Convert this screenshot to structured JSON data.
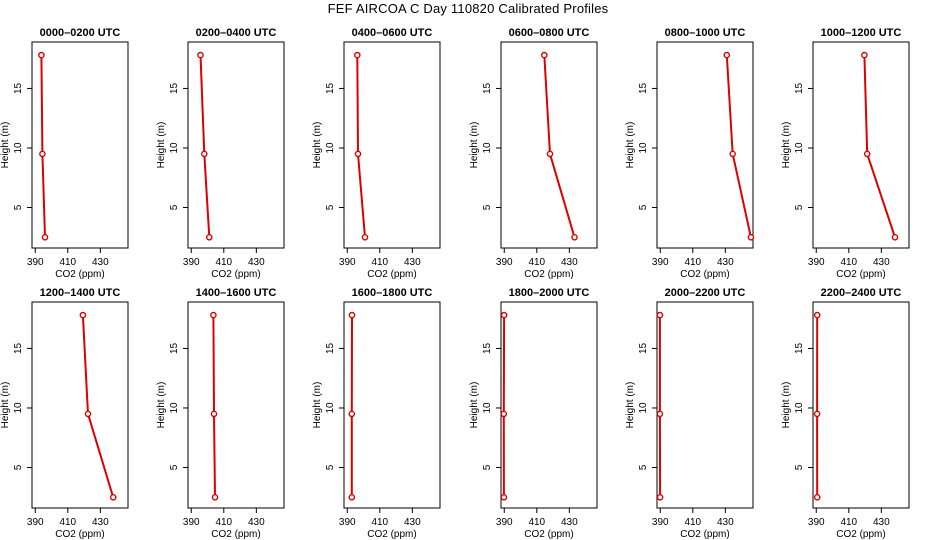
{
  "title": "FEF AIRCOA C  Day 110820  Calibrated Profiles",
  "colors": {
    "series": "#dd0000",
    "axis": "#000000"
  },
  "chart_data": [
    {
      "type": "line",
      "title": "0000–0200 UTC",
      "xlabel": "CO2 (ppm)",
      "ylabel": "Height (m)",
      "xlim": [
        388,
        447
      ],
      "ylim": [
        1.6,
        18.9
      ],
      "xticks": [
        390,
        410,
        430
      ],
      "yticks": [
        5,
        10,
        15
      ],
      "series": [
        {
          "x": [
            396.0,
            394.4,
            393.8
          ],
          "y": [
            2.5,
            9.5,
            17.8
          ]
        }
      ]
    },
    {
      "type": "line",
      "title": "0200–0400 UTC",
      "xlabel": "CO2 (ppm)",
      "ylabel": "Height (m)",
      "xlim": [
        388,
        447
      ],
      "ylim": [
        1.6,
        18.9
      ],
      "xticks": [
        390,
        410,
        430
      ],
      "yticks": [
        5,
        10,
        15
      ],
      "series": [
        {
          "x": [
            401.1,
            398.0,
            395.7
          ],
          "y": [
            2.5,
            9.5,
            17.8
          ]
        }
      ]
    },
    {
      "type": "line",
      "title": "0400–0600 UTC",
      "xlabel": "CO2 (ppm)",
      "ylabel": "Height (m)",
      "xlim": [
        388,
        447
      ],
      "ylim": [
        1.6,
        18.9
      ],
      "xticks": [
        390,
        410,
        430
      ],
      "yticks": [
        5,
        10,
        15
      ],
      "series": [
        {
          "x": [
            400.9,
            396.6,
            396.2
          ],
          "y": [
            2.5,
            9.5,
            17.8
          ]
        }
      ]
    },
    {
      "type": "line",
      "title": "0600–0800 UTC",
      "xlabel": "CO2 (ppm)",
      "ylabel": "Height (m)",
      "xlim": [
        388,
        447
      ],
      "ylim": [
        1.6,
        18.9
      ],
      "xticks": [
        390,
        410,
        430
      ],
      "yticks": [
        5,
        10,
        15
      ],
      "series": [
        {
          "x": [
            433.2,
            418.1,
            414.6
          ],
          "y": [
            2.5,
            9.5,
            17.8
          ]
        }
      ]
    },
    {
      "type": "line",
      "title": "0800–1000 UTC",
      "xlabel": "CO2 (ppm)",
      "ylabel": "Height (m)",
      "xlim": [
        388,
        447
      ],
      "ylim": [
        1.6,
        18.9
      ],
      "xticks": [
        390,
        410,
        430
      ],
      "yticks": [
        5,
        10,
        15
      ],
      "series": [
        {
          "x": [
            445.7,
            434.5,
            430.9
          ],
          "y": [
            2.5,
            9.5,
            17.8
          ]
        }
      ]
    },
    {
      "type": "line",
      "title": "1000–1200 UTC",
      "xlabel": "CO2 (ppm)",
      "ylabel": "Height (m)",
      "xlim": [
        388,
        447
      ],
      "ylim": [
        1.6,
        18.9
      ],
      "xticks": [
        390,
        410,
        430
      ],
      "yticks": [
        5,
        10,
        15
      ],
      "series": [
        {
          "x": [
            438.4,
            421.3,
            419.6
          ],
          "y": [
            2.5,
            9.5,
            17.8
          ]
        }
      ]
    },
    {
      "type": "line",
      "title": "1200–1400 UTC",
      "xlabel": "CO2 (ppm)",
      "ylabel": "Height (m)",
      "xlim": [
        388,
        447
      ],
      "ylim": [
        1.6,
        18.9
      ],
      "xticks": [
        390,
        410,
        430
      ],
      "yticks": [
        5,
        10,
        15
      ],
      "series": [
        {
          "x": [
            437.9,
            422.4,
            419.3
          ],
          "y": [
            2.5,
            9.5,
            17.8
          ]
        }
      ]
    },
    {
      "type": "line",
      "title": "1400–1600 UTC",
      "xlabel": "CO2 (ppm)",
      "ylabel": "Height (m)",
      "xlim": [
        388,
        447
      ],
      "ylim": [
        1.6,
        18.9
      ],
      "xticks": [
        390,
        410,
        430
      ],
      "yticks": [
        5,
        10,
        15
      ],
      "series": [
        {
          "x": [
            404.6,
            404.0,
            403.6
          ],
          "y": [
            2.5,
            9.5,
            17.8
          ]
        }
      ]
    },
    {
      "type": "line",
      "title": "1600–1800 UTC",
      "xlabel": "CO2 (ppm)",
      "ylabel": "Height (m)",
      "xlim": [
        388,
        447
      ],
      "ylim": [
        1.6,
        18.9
      ],
      "xticks": [
        390,
        410,
        430
      ],
      "yticks": [
        5,
        10,
        15
      ],
      "series": [
        {
          "x": [
            392.8,
            392.8,
            392.9
          ],
          "y": [
            2.5,
            9.5,
            17.8
          ]
        }
      ]
    },
    {
      "type": "line",
      "title": "1800–2000 UTC",
      "xlabel": "CO2 (ppm)",
      "ylabel": "Height (m)",
      "xlim": [
        388,
        447
      ],
      "ylim": [
        1.6,
        18.9
      ],
      "xticks": [
        390,
        410,
        430
      ],
      "yticks": [
        5,
        10,
        15
      ],
      "series": [
        {
          "x": [
            389.8,
            389.7,
            389.9
          ],
          "y": [
            2.5,
            9.5,
            17.8
          ]
        }
      ]
    },
    {
      "type": "line",
      "title": "2000–2200 UTC",
      "xlabel": "CO2 (ppm)",
      "ylabel": "Height (m)",
      "xlim": [
        388,
        447
      ],
      "ylim": [
        1.6,
        18.9
      ],
      "xticks": [
        390,
        410,
        430
      ],
      "yticks": [
        5,
        10,
        15
      ],
      "series": [
        {
          "x": [
            389.9,
            389.8,
            389.8
          ],
          "y": [
            2.5,
            9.5,
            17.8
          ]
        }
      ]
    },
    {
      "type": "line",
      "title": "2200–2400 UTC",
      "xlabel": "CO2 (ppm)",
      "ylabel": "Height (m)",
      "xlim": [
        388,
        447
      ],
      "ylim": [
        1.6,
        18.9
      ],
      "xticks": [
        390,
        410,
        430
      ],
      "yticks": [
        5,
        10,
        15
      ],
      "series": [
        {
          "x": [
            390.6,
            390.5,
            390.6
          ],
          "y": [
            2.5,
            9.5,
            17.8
          ]
        }
      ]
    }
  ]
}
